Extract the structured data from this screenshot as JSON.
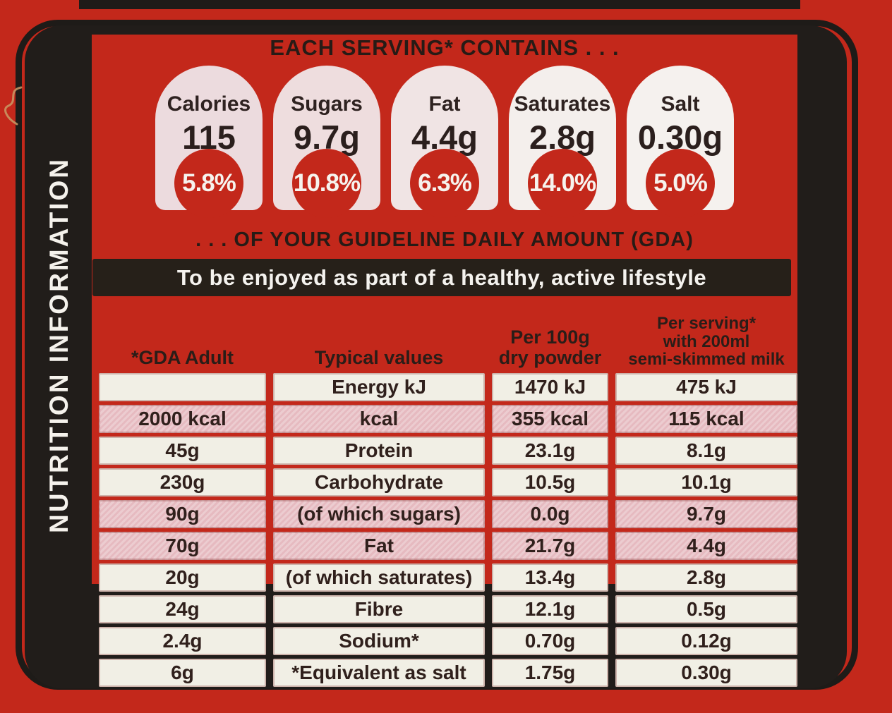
{
  "label": {
    "vertical_title": "NUTRITION INFORMATION",
    "serving_header": "EACH SERVING* CONTAINS . . .",
    "gda_line": ". . . OF YOUR GUIDELINE DAILY AMOUNT (GDA)",
    "lifestyle_bar": "To be enjoyed as part of a healthy, active lifestyle"
  },
  "badges": [
    {
      "label": "Calories",
      "value": "115",
      "percent": "5.8%",
      "tint": "#ecdbde"
    },
    {
      "label": "Sugars",
      "value": "9.7g",
      "percent": "10.8%",
      "tint": "#eeddde"
    },
    {
      "label": "Fat",
      "value": "4.4g",
      "percent": "6.3%",
      "tint": "#f0e4e4"
    },
    {
      "label": "Saturates",
      "value": "2.8g",
      "percent": "14.0%",
      "tint": "#f4efec"
    },
    {
      "label": "Salt",
      "value": "0.30g",
      "percent": "5.0%",
      "tint": "#f5f1ee"
    }
  ],
  "table": {
    "columns": {
      "gda": [
        "*GDA Adult"
      ],
      "typical": [
        "Typical values"
      ],
      "per100g": [
        "Per 100g",
        "dry powder"
      ],
      "per_serving": [
        "Per serving*",
        "with 200ml",
        "semi-skimmed milk"
      ]
    },
    "rows": [
      {
        "gda": "",
        "name": "Energy kJ",
        "per100g": "1470 kJ",
        "per_serving": "475 kJ",
        "tint": "white"
      },
      {
        "gda": "2000 kcal",
        "name": "kcal",
        "per100g": "355 kcal",
        "per_serving": "115 kcal",
        "tint": "pink"
      },
      {
        "gda": "45g",
        "name": "Protein",
        "per100g": "23.1g",
        "per_serving": "8.1g",
        "tint": "white"
      },
      {
        "gda": "230g",
        "name": "Carbohydrate",
        "per100g": "10.5g",
        "per_serving": "10.1g",
        "tint": "white"
      },
      {
        "gda": "90g",
        "name": "(of which sugars)",
        "per100g": "0.0g",
        "per_serving": "9.7g",
        "tint": "pink"
      },
      {
        "gda": "70g",
        "name": "Fat",
        "per100g": "21.7g",
        "per_serving": "4.4g",
        "tint": "pink"
      },
      {
        "gda": "20g",
        "name": "(of which saturates)",
        "per100g": "13.4g",
        "per_serving": "2.8g",
        "tint": "white"
      },
      {
        "gda": "24g",
        "name": "Fibre",
        "per100g": "12.1g",
        "per_serving": "0.5g",
        "tint": "white"
      },
      {
        "gda": "2.4g",
        "name": "Sodium*",
        "per100g": "0.70g",
        "per_serving": "0.12g",
        "tint": "white"
      },
      {
        "gda": "6g",
        "name": "*Equivalent as salt",
        "per100g": "1.75g",
        "per_serving": "0.30g",
        "tint": "white"
      }
    ]
  },
  "colors": {
    "background_red": "#c3281b",
    "frame_black": "#211d1a",
    "badge_circle_red": "#c3281b",
    "pink_row": "#e8c0c6",
    "cream_row": "#f1efe5",
    "text_dark": "#2a1d18",
    "text_light": "#f5f2ec"
  }
}
